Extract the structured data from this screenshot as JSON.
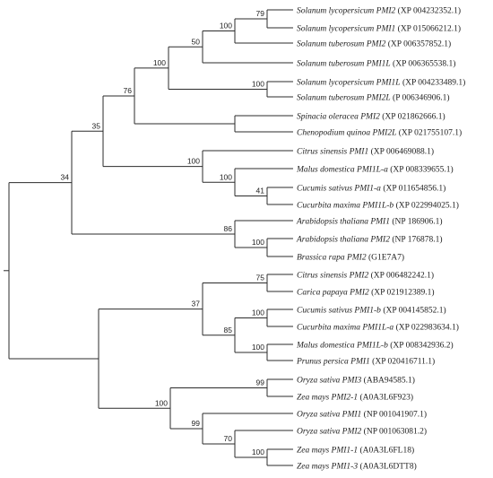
{
  "tree": {
    "leaves": [
      {
        "species": "Solanum lycopersicum PMI2",
        "accession": "(XP 004232352.1)"
      },
      {
        "species": "Solanum lycopersicum PMI1",
        "accession": "(XP 015066212.1)"
      },
      {
        "species": "Solanum tuberosum PMI2",
        "accession": "(XP 006357852.1)"
      },
      {
        "species": "Solanum tuberosum PMI1L",
        "accession": "(XP 006365538.1)"
      },
      {
        "species": "Solanum lycopersicum PMI1L",
        "accession": "(XP 004233489.1)"
      },
      {
        "species": "Solanum tuberosum PMI2L",
        "accession": "(P 006346906.1)"
      },
      {
        "species": "Spinacia oleracea PMI2",
        "accession": "(XP 021862666.1)"
      },
      {
        "species": "Chenopodium quinoa PMI2L",
        "accession": "(XP 021755107.1)"
      },
      {
        "species": "Citrus sinensis PMI1",
        "accession": "(XP 006469088.1)"
      },
      {
        "species": "Malus domestica PMI1L-a",
        "accession": "(XP 008339655.1)"
      },
      {
        "species": "Cucumis sativus PMI1-a",
        "accession": "(XP 011654856.1)"
      },
      {
        "species": "Cucurbita maxima PMI1L-b",
        "accession": "(XP 022994025.1)"
      },
      {
        "species": "Arabidopsis thaliana PMI1",
        "accession": "(NP 186906.1)"
      },
      {
        "species": "Arabidopsis thaliana PMI2",
        "accession": "(NP 176878.1)"
      },
      {
        "species": "Brassica rapa PMI2",
        "accession": "(G1E7A7)"
      },
      {
        "species": "Citrus sinensis PMI2",
        "accession": "(XP 006482242.1)"
      },
      {
        "species": "Carica papaya PMI2",
        "accession": "(XP 021912389.1)"
      },
      {
        "species": "Cucumis sativus PMI1-b",
        "accession": "(XP 004145852.1)"
      },
      {
        "species": "Cucurbita maxima PMI1L-a",
        "accession": "(XP 022983634.1)"
      },
      {
        "species": "Malus domestica PMI1L-b",
        "accession": "(XP 008342936.2)"
      },
      {
        "species": "Prunus persica PMI1",
        "accession": "(XP 020416711.1)"
      },
      {
        "species": "Oryza sativa PMI3",
        "accession": "(ABA94585.1)"
      },
      {
        "species": "Zea mays PMI2-1",
        "accession": "(A0A3L6F923)"
      },
      {
        "species": "Oryza sativa PMI1",
        "accession": "(NP 001041907.1)"
      },
      {
        "species": "Oryza sativa PMI2",
        "accession": "(NP 001063081.2)"
      },
      {
        "species": "Zea mays PMI1-1",
        "accession": "(A0A3L6FL18)"
      },
      {
        "species": "Zea mays PMI1-3",
        "accession": "(A0A3L6DTT8)"
      }
    ],
    "bootstrap_values": [
      "79",
      "100",
      "50",
      "100",
      "100",
      "76",
      "100",
      "35",
      "100",
      "41",
      "100",
      "86",
      "34",
      "75",
      "100",
      "37",
      "85",
      "100",
      "99",
      "100",
      "99",
      "70",
      "100"
    ]
  }
}
